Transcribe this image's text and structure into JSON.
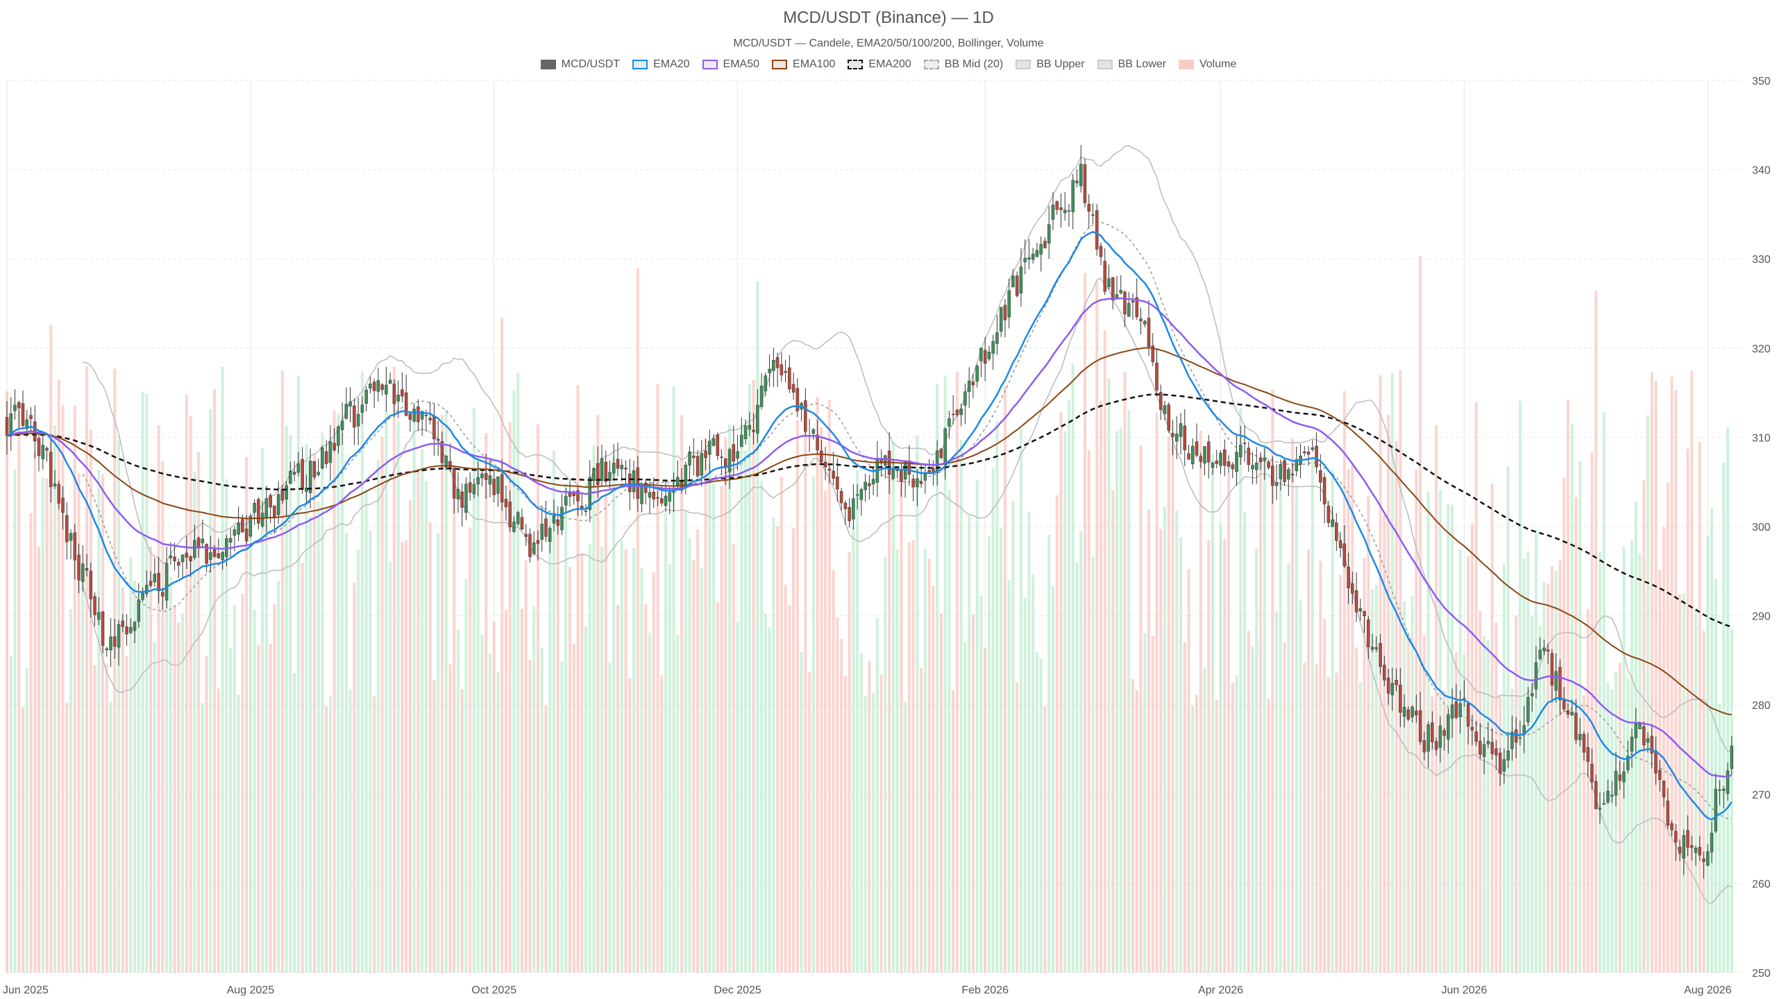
{
  "chart_data": {
    "type": "candlestick",
    "title": "MCD/USDT (Binance) — 1D",
    "subtitle": "MCD/USDT — Candele, EMA20/50/100/200, Bollinger, Volume",
    "legend": [
      {
        "name": "MCD/USDT",
        "style": "candles",
        "color": "#666666"
      },
      {
        "name": "EMA20",
        "style": "line",
        "color": "#1e88e5"
      },
      {
        "name": "EMA50",
        "style": "line",
        "color": "#8e5cf2"
      },
      {
        "name": "EMA100",
        "style": "line",
        "color": "#8b4513"
      },
      {
        "name": "EMA200",
        "style": "dashed",
        "color": "#111111"
      },
      {
        "name": "BB Mid (20)",
        "style": "dotted",
        "color": "#999999"
      },
      {
        "name": "BB Upper",
        "style": "line",
        "color": "#bbbbbb"
      },
      {
        "name": "BB Lower",
        "style": "line",
        "color": "#bbbbbb"
      },
      {
        "name": "Volume",
        "style": "bars",
        "color": "#f4a9a0"
      }
    ],
    "x_axis": {
      "range": [
        "2025-06-01",
        "2026-08-10"
      ],
      "tick_labels": [
        "Jun 2025",
        "Aug 2025",
        "Oct 2025",
        "Dec 2025",
        "Feb 2026",
        "Apr 2026",
        "Jun 2026",
        "Aug 2026"
      ],
      "tick_dates": [
        "2025-06-01",
        "2025-08-01",
        "2025-10-01",
        "2025-12-01",
        "2026-02-01",
        "2026-04-01",
        "2026-06-01",
        "2026-08-01"
      ]
    },
    "y_axis": {
      "position": "right",
      "range": [
        250,
        350
      ],
      "ticks": [
        250,
        260,
        270,
        280,
        290,
        300,
        310,
        320,
        330,
        340,
        350
      ]
    },
    "grid": true,
    "colors": {
      "up": "#3f8f5a",
      "down": "#b54a3d",
      "vol_up": "#a8e6bf",
      "vol_down": "#f7b2aa"
    },
    "price_anchors": [
      [
        "2025-06-01",
        312
      ],
      [
        "2025-06-08",
        310
      ],
      [
        "2025-06-15",
        301
      ],
      [
        "2025-06-25",
        287
      ],
      [
        "2025-07-05",
        292
      ],
      [
        "2025-07-15",
        297
      ],
      [
        "2025-07-25",
        298
      ],
      [
        "2025-08-05",
        302
      ],
      [
        "2025-08-15",
        306
      ],
      [
        "2025-08-25",
        312
      ],
      [
        "2025-09-05",
        316
      ],
      [
        "2025-09-15",
        311
      ],
      [
        "2025-09-22",
        303
      ],
      [
        "2025-10-01",
        305
      ],
      [
        "2025-10-10",
        297
      ],
      [
        "2025-10-20",
        302
      ],
      [
        "2025-10-30",
        307
      ],
      [
        "2025-11-10",
        303
      ],
      [
        "2025-11-20",
        307
      ],
      [
        "2025-12-01",
        309
      ],
      [
        "2025-12-10",
        318
      ],
      [
        "2025-12-20",
        309
      ],
      [
        "2025-12-28",
        301
      ],
      [
        "2026-01-05",
        307
      ],
      [
        "2026-01-15",
        305
      ],
      [
        "2026-01-25",
        312
      ],
      [
        "2026-02-05",
        324
      ],
      [
        "2026-02-15",
        332
      ],
      [
        "2026-02-25",
        339
      ],
      [
        "2026-03-03",
        327
      ],
      [
        "2026-03-12",
        324
      ],
      [
        "2026-03-18",
        312
      ],
      [
        "2026-03-25",
        308
      ],
      [
        "2026-04-05",
        308
      ],
      [
        "2026-04-15",
        305
      ],
      [
        "2026-04-25",
        307
      ],
      [
        "2026-05-05",
        290
      ],
      [
        "2026-05-15",
        281
      ],
      [
        "2026-05-22",
        276
      ],
      [
        "2026-06-01",
        280
      ],
      [
        "2026-06-10",
        272
      ],
      [
        "2026-06-20",
        285
      ],
      [
        "2026-06-28",
        279
      ],
      [
        "2026-07-05",
        266
      ],
      [
        "2026-07-15",
        279
      ],
      [
        "2026-07-22",
        267
      ],
      [
        "2026-07-30",
        262
      ],
      [
        "2026-08-03",
        270
      ],
      [
        "2026-08-07",
        275
      ]
    ]
  }
}
